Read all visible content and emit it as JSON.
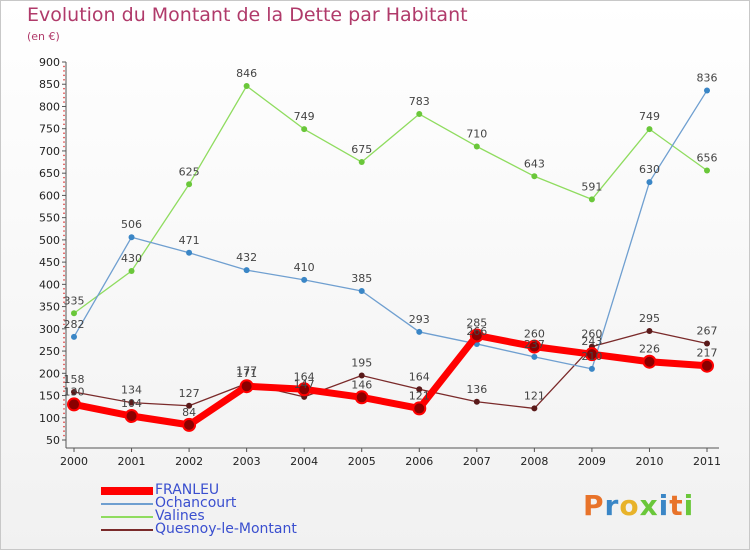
{
  "title": "Evolution du Montant de la Dette par Habitant",
  "subtitle": "(en €)",
  "logo": "Proxiti",
  "chart_data": {
    "type": "line",
    "title": "Evolution du Montant de la Dette par Habitant",
    "subtitle": "(en €)",
    "x": [
      "2000",
      "2001",
      "2002",
      "2003",
      "2004",
      "2005",
      "2006",
      "2007",
      "2008",
      "2009",
      "2010",
      "2011"
    ],
    "ylim": [
      50,
      900
    ],
    "yticks": [
      50,
      100,
      150,
      200,
      250,
      300,
      350,
      400,
      450,
      500,
      550,
      600,
      650,
      700,
      750,
      800,
      850,
      900
    ],
    "grid": false,
    "legend_position": "bottom-left",
    "series": [
      {
        "name": "FRANLEU",
        "color": "#ff0000",
        "marker": "#8b0000",
        "values": [
          130,
          104,
          84,
          171,
          164,
          146,
          121,
          285,
          260,
          243,
          226,
          217
        ]
      },
      {
        "name": "Ochancourt",
        "color": "#6f9fd0",
        "marker": "#3a86c6",
        "values": [
          282,
          506,
          471,
          432,
          410,
          385,
          293,
          266,
          237,
          210,
          630,
          836
        ]
      },
      {
        "name": "Valines",
        "color": "#8fdc5f",
        "marker": "#6ac73a",
        "values": [
          335,
          430,
          625,
          846,
          749,
          675,
          783,
          710,
          643,
          591,
          749,
          656
        ]
      },
      {
        "name": "Quesnoy-le-Montant",
        "color": "#7a2a2a",
        "marker": "#5a1a1a",
        "values": [
          158,
          134,
          127,
          177,
          147,
          195,
          164,
          136,
          121,
          260,
          295,
          267
        ]
      }
    ]
  }
}
